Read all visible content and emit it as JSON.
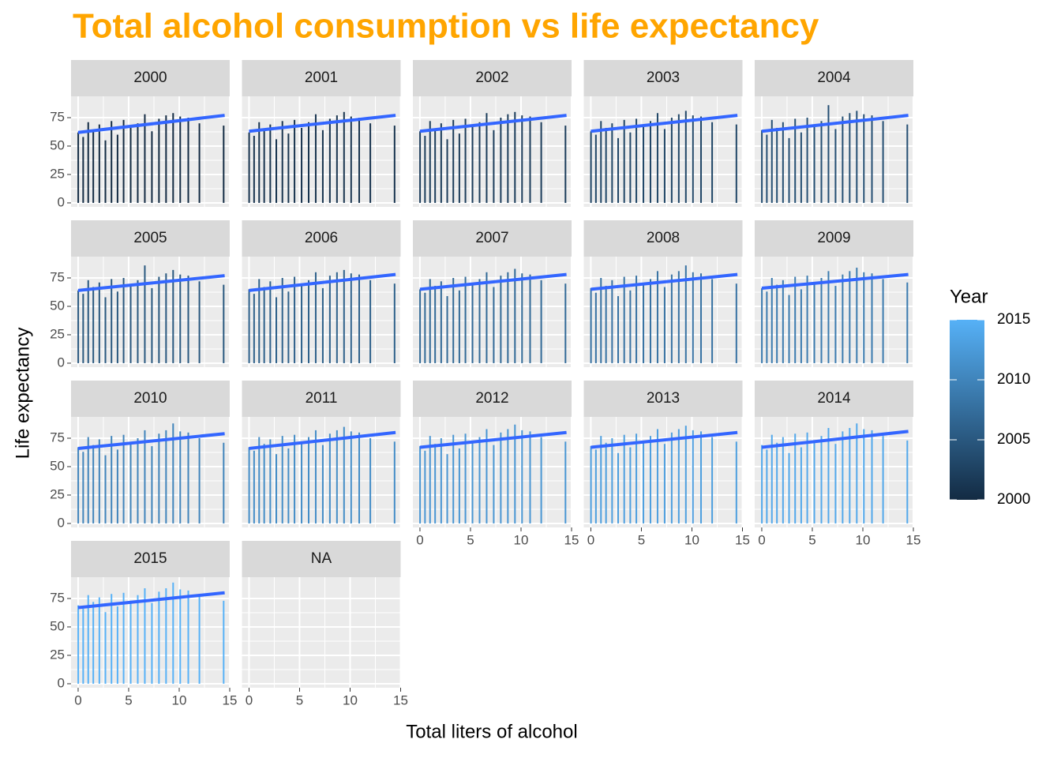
{
  "chart_data": {
    "type": "bar",
    "title": "Total alcohol consumption vs life expectancy",
    "x_label": "Total liters of alcohol",
    "y_label": "Life expectancy",
    "xlim": [
      -0.7,
      15
    ],
    "ylim": [
      -3.5,
      93.75
    ],
    "xticks": [
      0,
      5,
      10,
      15
    ],
    "yticks": [
      0,
      25,
      50,
      75
    ],
    "grid": true,
    "trend_color": "#3366ff",
    "x": [
      0.01,
      0.5,
      1.0,
      1.5,
      2.1,
      2.7,
      3.3,
      3.9,
      4.5,
      5.2,
      5.9,
      6.6,
      7.3,
      8.0,
      8.7,
      9.4,
      10.1,
      10.9,
      12.0,
      14.4
    ],
    "trend_x": [
      0,
      14.5
    ],
    "facets": [
      {
        "name": "2000",
        "color": "#132b43",
        "values": [
          62,
          58,
          71,
          64,
          69,
          55,
          72,
          60,
          73,
          66,
          70,
          78,
          63,
          74,
          77,
          79,
          76,
          75,
          70,
          68
        ],
        "trend": [
          62,
          77
        ]
      },
      {
        "name": "2001",
        "color": "#18344f",
        "values": [
          62,
          59,
          71,
          65,
          69,
          56,
          72,
          61,
          73,
          66,
          71,
          78,
          64,
          74,
          77,
          80,
          76,
          75,
          70,
          68
        ],
        "trend": [
          63,
          77
        ]
      },
      {
        "name": "2002",
        "color": "#1c3d5b",
        "values": [
          63,
          59,
          72,
          65,
          70,
          56,
          73,
          61,
          74,
          67,
          71,
          79,
          64,
          75,
          78,
          80,
          77,
          76,
          71,
          68
        ],
        "trend": [
          63,
          77
        ]
      },
      {
        "name": "2003",
        "color": "#204667",
        "values": [
          63,
          60,
          72,
          66,
          70,
          57,
          73,
          62,
          74,
          67,
          72,
          79,
          65,
          75,
          78,
          81,
          77,
          76,
          71,
          69
        ],
        "trend": [
          63,
          77
        ]
      },
      {
        "name": "2004",
        "color": "#254f73",
        "values": [
          64,
          60,
          73,
          66,
          71,
          57,
          74,
          62,
          75,
          68,
          72,
          86,
          65,
          76,
          79,
          81,
          78,
          77,
          72,
          69
        ],
        "trend": [
          63,
          77
        ]
      },
      {
        "name": "2005",
        "color": "#29587f",
        "values": [
          64,
          61,
          73,
          67,
          71,
          58,
          74,
          63,
          75,
          68,
          73,
          86,
          66,
          76,
          79,
          82,
          78,
          77,
          72,
          69
        ],
        "trend": [
          64,
          77
        ]
      },
      {
        "name": "2006",
        "color": "#2e618b",
        "values": [
          65,
          61,
          74,
          67,
          72,
          58,
          75,
          63,
          76,
          69,
          73,
          80,
          66,
          77,
          80,
          82,
          79,
          78,
          73,
          70
        ],
        "trend": [
          64,
          78
        ]
      },
      {
        "name": "2007",
        "color": "#326a97",
        "values": [
          65,
          62,
          74,
          68,
          72,
          59,
          75,
          64,
          76,
          69,
          74,
          80,
          67,
          77,
          80,
          83,
          79,
          78,
          73,
          70
        ],
        "trend": [
          65,
          78
        ]
      },
      {
        "name": "2008",
        "color": "#3772a3",
        "values": [
          66,
          62,
          75,
          68,
          73,
          59,
          76,
          64,
          77,
          70,
          74,
          81,
          67,
          78,
          81,
          86,
          80,
          79,
          74,
          70
        ],
        "trend": [
          65,
          78
        ]
      },
      {
        "name": "2009",
        "color": "#3b7baf",
        "values": [
          66,
          63,
          75,
          69,
          73,
          60,
          76,
          65,
          77,
          70,
          75,
          81,
          68,
          78,
          81,
          84,
          80,
          79,
          74,
          71
        ],
        "trend": [
          66,
          78
        ]
      },
      {
        "name": "2010",
        "color": "#4084bb",
        "values": [
          67,
          63,
          76,
          69,
          74,
          60,
          77,
          65,
          78,
          71,
          75,
          82,
          68,
          79,
          82,
          88,
          81,
          80,
          75,
          71
        ],
        "trend": [
          66,
          79
        ]
      },
      {
        "name": "2011",
        "color": "#448dc7",
        "values": [
          67,
          64,
          76,
          70,
          74,
          61,
          77,
          66,
          78,
          71,
          76,
          82,
          69,
          79,
          82,
          85,
          81,
          80,
          75,
          72
        ],
        "trend": [
          66,
          80
        ]
      },
      {
        "name": "2012",
        "color": "#4996d3",
        "values": [
          68,
          64,
          77,
          70,
          75,
          61,
          78,
          66,
          79,
          72,
          76,
          83,
          69,
          80,
          83,
          87,
          82,
          81,
          76,
          72
        ],
        "trend": [
          67,
          80
        ]
      },
      {
        "name": "2013",
        "color": "#4d9fdf",
        "values": [
          68,
          65,
          77,
          71,
          75,
          62,
          78,
          67,
          79,
          72,
          77,
          83,
          70,
          80,
          83,
          86,
          82,
          81,
          76,
          72
        ],
        "trend": [
          67,
          80
        ]
      },
      {
        "name": "2014",
        "color": "#52a8eb",
        "values": [
          69,
          65,
          78,
          71,
          76,
          62,
          79,
          67,
          80,
          73,
          77,
          84,
          70,
          81,
          84,
          88,
          83,
          82,
          77,
          73
        ],
        "trend": [
          67,
          81
        ]
      },
      {
        "name": "2015",
        "color": "#56b1f7",
        "values": [
          69,
          66,
          78,
          72,
          76,
          63,
          79,
          68,
          80,
          73,
          78,
          84,
          71,
          81,
          84,
          89,
          83,
          82,
          77,
          73
        ],
        "trend": [
          67,
          80
        ]
      },
      {
        "name": "NA"
      }
    ],
    "legend": {
      "title": "Year",
      "lim": [
        2000,
        2015
      ],
      "ticks": [
        2000,
        2005,
        2010,
        2015
      ],
      "colors": [
        "#132b43",
        "#56b1f7"
      ]
    }
  }
}
